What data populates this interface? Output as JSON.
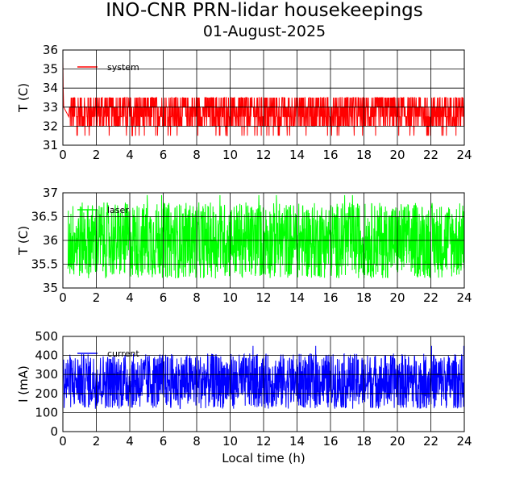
{
  "figure": {
    "title": "INO-CNR PRN-lidar housekeepings",
    "subtitle": "01-August-2025"
  },
  "chart_data": [
    {
      "type": "line",
      "ylabel": "T (C)",
      "xlabel": "",
      "xlim": [
        0,
        24
      ],
      "ylim": [
        31,
        36
      ],
      "xticks": [
        "0",
        "2",
        "4",
        "6",
        "8",
        "10",
        "12",
        "14",
        "16",
        "18",
        "20",
        "22",
        "24"
      ],
      "yticks": [
        "31",
        "32",
        "33",
        "34",
        "35",
        "36"
      ],
      "grid": true,
      "legend_position": "top-left",
      "series": [
        {
          "name": "system",
          "color": "#ff0000",
          "x": [
            0,
            0.02,
            0.05,
            0.1,
            0.3,
            1,
            2,
            3,
            4,
            5,
            6,
            7,
            8,
            9,
            10,
            11,
            12,
            13,
            14,
            15,
            16,
            17,
            18,
            19,
            20,
            21,
            22,
            23,
            24
          ],
          "y": [
            35.5,
            34,
            33,
            32.5,
            33,
            33,
            32.5,
            33.5,
            33,
            33.5,
            32.5,
            33,
            33,
            33.5,
            32.5,
            33,
            32.5,
            33,
            33,
            33.5,
            32.5,
            33,
            33.5,
            32.5,
            33,
            33.5,
            32.5,
            33,
            32
          ],
          "band": {
            "low": 31.5,
            "high": 33.5,
            "peak": 34,
            "start": 0.4,
            "end": 24
          }
        }
      ]
    },
    {
      "type": "line",
      "ylabel": "T (C)",
      "xlabel": "",
      "xlim": [
        0,
        24
      ],
      "ylim": [
        35,
        37
      ],
      "xticks": [
        "0",
        "2",
        "4",
        "6",
        "8",
        "10",
        "12",
        "14",
        "16",
        "18",
        "20",
        "22",
        "24"
      ],
      "yticks": [
        "35",
        "35.5",
        "36",
        "36.5",
        "37"
      ],
      "grid": true,
      "legend_position": "top-left",
      "series": [
        {
          "name": "laser",
          "color": "#00ff00",
          "x": [
            0.3,
            2,
            4,
            6,
            8,
            10,
            12,
            14,
            16,
            18,
            20,
            22,
            24
          ],
          "y": [
            36,
            36,
            35.9,
            36,
            36,
            36,
            35.9,
            36.1,
            36,
            36,
            36,
            35.9,
            36
          ],
          "band": {
            "low": 35.2,
            "high": 36.8,
            "peak": 36.95,
            "start": 0.3,
            "end": 24
          }
        }
      ]
    },
    {
      "type": "line",
      "ylabel": "I (mA)",
      "xlabel": "Local time (h)",
      "xlim": [
        0,
        24
      ],
      "ylim": [
        0,
        500
      ],
      "xticks": [
        "0",
        "2",
        "4",
        "6",
        "8",
        "10",
        "12",
        "14",
        "16",
        "18",
        "20",
        "22",
        "24"
      ],
      "yticks": [
        "0",
        "100",
        "200",
        "300",
        "400",
        "500"
      ],
      "grid": true,
      "legend_position": "top-left",
      "series": [
        {
          "name": "current",
          "color": "#0000ff",
          "x": [
            0,
            2,
            4,
            6,
            8,
            10,
            12,
            14,
            16,
            18,
            20,
            22,
            24
          ],
          "y": [
            265,
            265,
            260,
            265,
            270,
            265,
            265,
            265,
            265,
            265,
            265,
            265,
            265
          ],
          "band": {
            "low": 120,
            "high": 410,
            "peak": 450,
            "start": 0,
            "end": 24
          }
        }
      ]
    }
  ]
}
